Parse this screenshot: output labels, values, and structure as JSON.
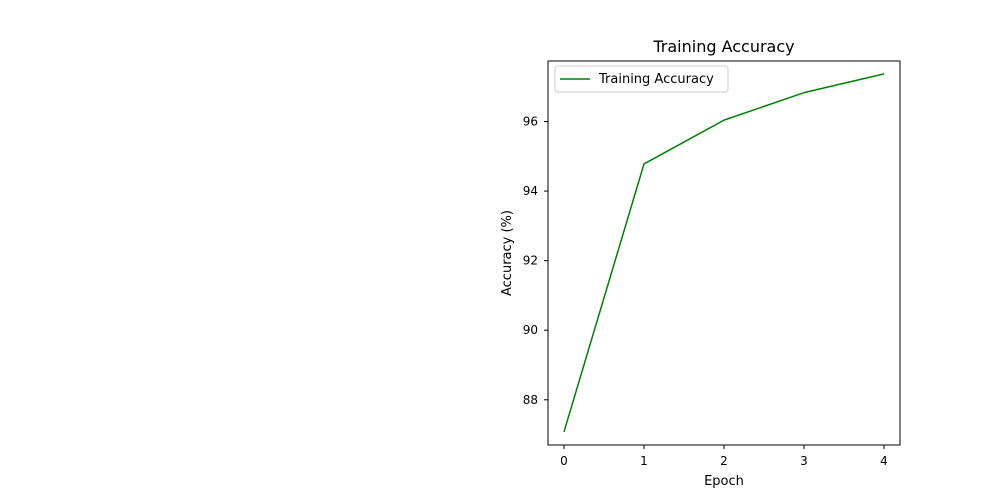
{
  "chart_data": {
    "type": "line",
    "title": "Training Accuracy",
    "xlabel": "Epoch",
    "ylabel": "Accuracy (%)",
    "x": [
      0,
      1,
      2,
      3,
      4
    ],
    "series": [
      {
        "name": "Training Accuracy",
        "color": "#008000",
        "values": [
          87.08,
          94.78,
          96.04,
          96.83,
          97.37
        ]
      }
    ],
    "xlim": [
      -0.2,
      4.2
    ],
    "ylim": [
      86.7,
      97.74
    ],
    "xticks": [
      0,
      1,
      2,
      3,
      4
    ],
    "yticks": [
      88,
      90,
      92,
      94,
      96
    ],
    "grid": false,
    "legend": "upper-left"
  }
}
